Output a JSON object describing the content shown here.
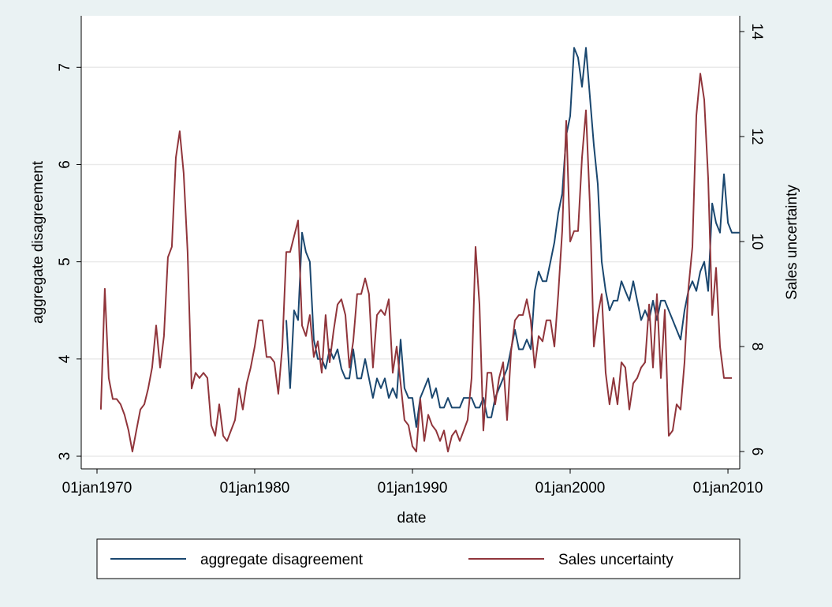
{
  "chart_data": {
    "type": "line",
    "x_label": "date",
    "y_label": "aggregate disagreement",
    "y2_label": "Sales uncertainty",
    "x": [
      "1970-01-01",
      "1970-04-01",
      "1970-07-01",
      "1970-10-01",
      "1971-01-01",
      "1971-04-01",
      "1971-07-01",
      "1971-10-01",
      "1972-01-01",
      "1972-04-01",
      "1972-07-01",
      "1972-10-01",
      "1973-01-01",
      "1973-04-01",
      "1973-07-01",
      "1973-10-01",
      "1974-01-01",
      "1974-04-01",
      "1974-07-01",
      "1974-10-01",
      "1975-01-01",
      "1975-04-01",
      "1975-07-01",
      "1975-10-01",
      "1976-01-01",
      "1976-04-01",
      "1976-07-01",
      "1976-10-01",
      "1977-01-01",
      "1977-04-01",
      "1977-07-01",
      "1977-10-01",
      "1978-01-01",
      "1978-04-01",
      "1978-07-01",
      "1978-10-01",
      "1979-01-01",
      "1979-04-01",
      "1979-07-01",
      "1979-10-01",
      "1980-01-01",
      "1980-04-01",
      "1980-07-01",
      "1980-10-01",
      "1981-01-01",
      "1981-04-01",
      "1981-07-01",
      "1981-10-01",
      "1982-01-01",
      "1982-04-01",
      "1982-07-01",
      "1982-10-01",
      "1983-01-01",
      "1983-04-01",
      "1983-07-01",
      "1983-10-01",
      "1984-01-01",
      "1984-04-01",
      "1984-07-01",
      "1984-10-01",
      "1985-01-01",
      "1985-04-01",
      "1985-07-01",
      "1985-10-01",
      "1986-01-01",
      "1986-04-01",
      "1986-07-01",
      "1986-10-01",
      "1987-01-01",
      "1987-04-01",
      "1987-07-01",
      "1987-10-01",
      "1988-01-01",
      "1988-04-01",
      "1988-07-01",
      "1988-10-01",
      "1989-01-01",
      "1989-04-01",
      "1989-07-01",
      "1989-10-01",
      "1990-01-01",
      "1990-04-01",
      "1990-07-01",
      "1990-10-01",
      "1991-01-01",
      "1991-04-01",
      "1991-07-01",
      "1991-10-01",
      "1992-01-01",
      "1992-04-01",
      "1992-07-01",
      "1992-10-01",
      "1993-01-01",
      "1993-04-01",
      "1993-07-01",
      "1993-10-01",
      "1994-01-01",
      "1994-04-01",
      "1994-07-01",
      "1994-10-01",
      "1995-01-01",
      "1995-04-01",
      "1995-07-01",
      "1995-10-01",
      "1996-01-01",
      "1996-04-01",
      "1996-07-01",
      "1996-10-01",
      "1997-01-01",
      "1997-04-01",
      "1997-07-01",
      "1997-10-01",
      "1998-01-01",
      "1998-04-01",
      "1998-07-01",
      "1998-10-01",
      "1999-01-01",
      "1999-04-01",
      "1999-07-01",
      "1999-10-01",
      "2000-01-01",
      "2000-04-01",
      "2000-07-01",
      "2000-10-01",
      "2001-01-01",
      "2001-04-01",
      "2001-07-01",
      "2001-10-01",
      "2002-01-01",
      "2002-04-01",
      "2002-07-01",
      "2002-10-01",
      "2003-01-01",
      "2003-04-01",
      "2003-07-01",
      "2003-10-01",
      "2004-01-01",
      "2004-04-01",
      "2004-07-01",
      "2004-10-01",
      "2005-01-01",
      "2005-04-01",
      "2005-07-01",
      "2005-10-01",
      "2006-01-01",
      "2006-04-01",
      "2006-07-01",
      "2006-10-01",
      "2007-01-01",
      "2007-04-01",
      "2007-07-01",
      "2007-10-01",
      "2008-01-01",
      "2008-04-01",
      "2008-07-01",
      "2008-10-01",
      "2009-01-01",
      "2009-04-01",
      "2009-07-01",
      "2009-10-01",
      "2010-01-01",
      "2010-04-01",
      "2010-07-01",
      "2010-10-01"
    ],
    "series": [
      {
        "name": "aggregate disagreement",
        "color": "#1a476f",
        "values": [
          null,
          null,
          null,
          null,
          null,
          null,
          null,
          null,
          null,
          null,
          null,
          null,
          null,
          null,
          null,
          null,
          null,
          null,
          null,
          null,
          null,
          null,
          null,
          null,
          null,
          null,
          null,
          null,
          null,
          null,
          null,
          null,
          null,
          null,
          null,
          null,
          null,
          null,
          null,
          null,
          null,
          null,
          null,
          null,
          null,
          null,
          null,
          null,
          4.4,
          3.7,
          4.5,
          4.4,
          5.3,
          5.1,
          5.0,
          4.2,
          4.0,
          4.0,
          3.9,
          4.1,
          4.0,
          4.1,
          3.9,
          3.8,
          3.8,
          4.1,
          3.8,
          3.8,
          4.0,
          3.8,
          3.6,
          3.8,
          3.7,
          3.8,
          3.6,
          3.7,
          3.6,
          4.2,
          3.7,
          3.6,
          3.6,
          3.3,
          3.6,
          3.7,
          3.8,
          3.6,
          3.7,
          3.5,
          3.5,
          3.6,
          3.5,
          3.5,
          3.5,
          3.6,
          3.6,
          3.6,
          3.5,
          3.5,
          3.6,
          3.4,
          3.4,
          3.6,
          3.7,
          3.8,
          3.9,
          4.1,
          4.3,
          4.1,
          4.1,
          4.2,
          4.1,
          4.7,
          4.9,
          4.8,
          4.8,
          5.0,
          5.2,
          5.5,
          5.7,
          6.3,
          6.5,
          7.2,
          7.1,
          6.8,
          7.2,
          6.7,
          6.2,
          5.8,
          5.0,
          4.7,
          4.5,
          4.6,
          4.6,
          4.8,
          4.7,
          4.6,
          4.8,
          4.6,
          4.4,
          4.5,
          4.4,
          4.6,
          4.4,
          4.6,
          4.6,
          4.5,
          4.4,
          4.3,
          4.2,
          4.5,
          4.7,
          4.8,
          4.7,
          4.9,
          5.0,
          4.7,
          5.6,
          5.4,
          5.3,
          5.9,
          5.4,
          5.3,
          5.3,
          5.3
        ]
      },
      {
        "name": "Sales uncertainty",
        "color": "#90353b",
        "axis": "y2",
        "values": [
          null,
          6.8,
          9.1,
          7.4,
          7.0,
          7.0,
          6.9,
          6.7,
          6.4,
          6.0,
          6.4,
          6.8,
          6.9,
          7.2,
          7.6,
          8.4,
          7.6,
          8.2,
          9.7,
          9.9,
          11.6,
          12.1,
          11.3,
          9.8,
          7.2,
          7.5,
          7.4,
          7.5,
          7.4,
          6.5,
          6.3,
          6.9,
          6.3,
          6.2,
          6.4,
          6.6,
          7.2,
          6.8,
          7.3,
          7.6,
          8.0,
          8.5,
          8.5,
          7.8,
          7.8,
          7.7,
          7.1,
          8.0,
          9.8,
          9.8,
          10.1,
          10.4,
          8.4,
          8.2,
          8.6,
          7.8,
          8.1,
          7.5,
          8.6,
          7.7,
          8.3,
          8.8,
          8.9,
          8.6,
          7.6,
          8.1,
          9.0,
          9.0,
          9.3,
          9.0,
          7.6,
          8.6,
          8.7,
          8.6,
          8.9,
          7.5,
          8.0,
          7.3,
          6.6,
          6.5,
          6.1,
          6.0,
          7.0,
          6.2,
          6.7,
          6.5,
          6.4,
          6.2,
          6.4,
          6.0,
          6.3,
          6.4,
          6.2,
          6.4,
          6.6,
          7.4,
          9.9,
          8.8,
          6.4,
          7.5,
          7.5,
          6.9,
          7.4,
          7.7,
          6.6,
          7.9,
          8.5,
          8.6,
          8.6,
          8.9,
          8.5,
          7.6,
          8.2,
          8.1,
          8.5,
          8.5,
          8.0,
          9.0,
          10.2,
          12.3,
          10.0,
          10.2,
          10.2,
          11.6,
          12.5,
          10.7,
          8.0,
          8.6,
          9.0,
          7.5,
          6.9,
          7.4,
          6.9,
          7.7,
          7.6,
          6.8,
          7.3,
          7.4,
          7.6,
          7.7,
          8.8,
          7.6,
          9.0,
          7.4,
          8.7,
          6.3,
          6.4,
          6.9,
          6.8,
          7.7,
          9.1,
          9.9,
          12.4,
          13.2,
          12.7,
          11.2,
          8.6,
          9.5,
          8.0,
          7.4,
          7.4,
          7.4,
          null,
          null
        ]
      }
    ],
    "xlim": [
      "1969-01-01",
      "2010-10-01"
    ],
    "xticks": [
      {
        "value": "1970-01-01",
        "label": "01jan1970"
      },
      {
        "value": "1980-01-01",
        "label": "01jan1980"
      },
      {
        "value": "1990-01-01",
        "label": "01jan1990"
      },
      {
        "value": "2000-01-01",
        "label": "01jan2000"
      },
      {
        "value": "2010-01-01",
        "label": "01jan2010"
      }
    ],
    "ylim": [
      2.87,
      7.53
    ],
    "yticks": [
      3,
      4,
      5,
      6,
      7
    ],
    "y2lim": [
      5.67,
      14.3
    ],
    "y2ticks": [
      6,
      8,
      10,
      12,
      14
    ],
    "grid": true,
    "legend": "bottom"
  }
}
